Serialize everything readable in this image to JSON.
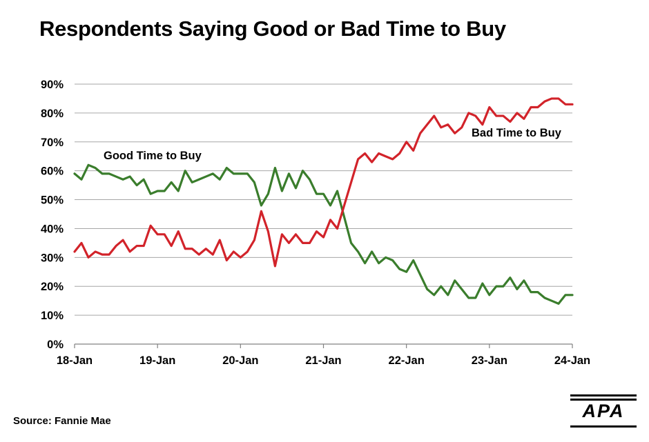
{
  "chart_data": {
    "type": "line",
    "title": "Respondents Saying Good or Bad Time to Buy",
    "xlabel": "",
    "ylabel": "",
    "ylim": [
      0,
      90
    ],
    "yticks": [
      "0%",
      "10%",
      "20%",
      "30%",
      "40%",
      "50%",
      "60%",
      "70%",
      "80%",
      "90%"
    ],
    "xticks": [
      "18-Jan",
      "19-Jan",
      "20-Jan",
      "21-Jan",
      "22-Jan",
      "23-Jan",
      "24-Jan"
    ],
    "grid": true,
    "series": [
      {
        "name": "Good Time to Buy",
        "color": "#3a7d2c",
        "values": [
          59,
          57,
          62,
          61,
          59,
          59,
          58,
          57,
          58,
          55,
          57,
          52,
          53,
          53,
          56,
          53,
          60,
          56,
          57,
          58,
          59,
          57,
          61,
          59,
          59,
          59,
          56,
          48,
          52,
          61,
          53,
          59,
          54,
          60,
          57,
          52,
          52,
          48,
          53,
          44,
          35,
          32,
          28,
          32,
          28,
          30,
          29,
          26,
          25,
          29,
          24,
          19,
          17,
          20,
          17,
          22,
          19,
          16,
          16,
          21,
          17,
          20,
          20,
          23,
          19,
          22,
          18,
          18,
          16,
          15,
          14,
          17,
          17
        ]
      },
      {
        "name": "Bad Time to Buy",
        "color": "#d2232a",
        "values": [
          32,
          35,
          30,
          32,
          31,
          31,
          34,
          36,
          32,
          34,
          34,
          41,
          38,
          38,
          34,
          39,
          33,
          33,
          31,
          33,
          31,
          36,
          29,
          32,
          30,
          32,
          36,
          46,
          39,
          27,
          38,
          35,
          38,
          35,
          35,
          39,
          37,
          43,
          40,
          48,
          56,
          64,
          66,
          63,
          66,
          65,
          64,
          66,
          70,
          67,
          73,
          76,
          79,
          75,
          76,
          73,
          75,
          80,
          79,
          76,
          82,
          79,
          79,
          77,
          80,
          78,
          82,
          82,
          84,
          85,
          85,
          83,
          83
        ]
      }
    ]
  },
  "labels": {
    "good": "Good Time to Buy",
    "bad": "Bad Time to Buy"
  },
  "source": "Source: Fannie Mae",
  "logo_text": "APA"
}
